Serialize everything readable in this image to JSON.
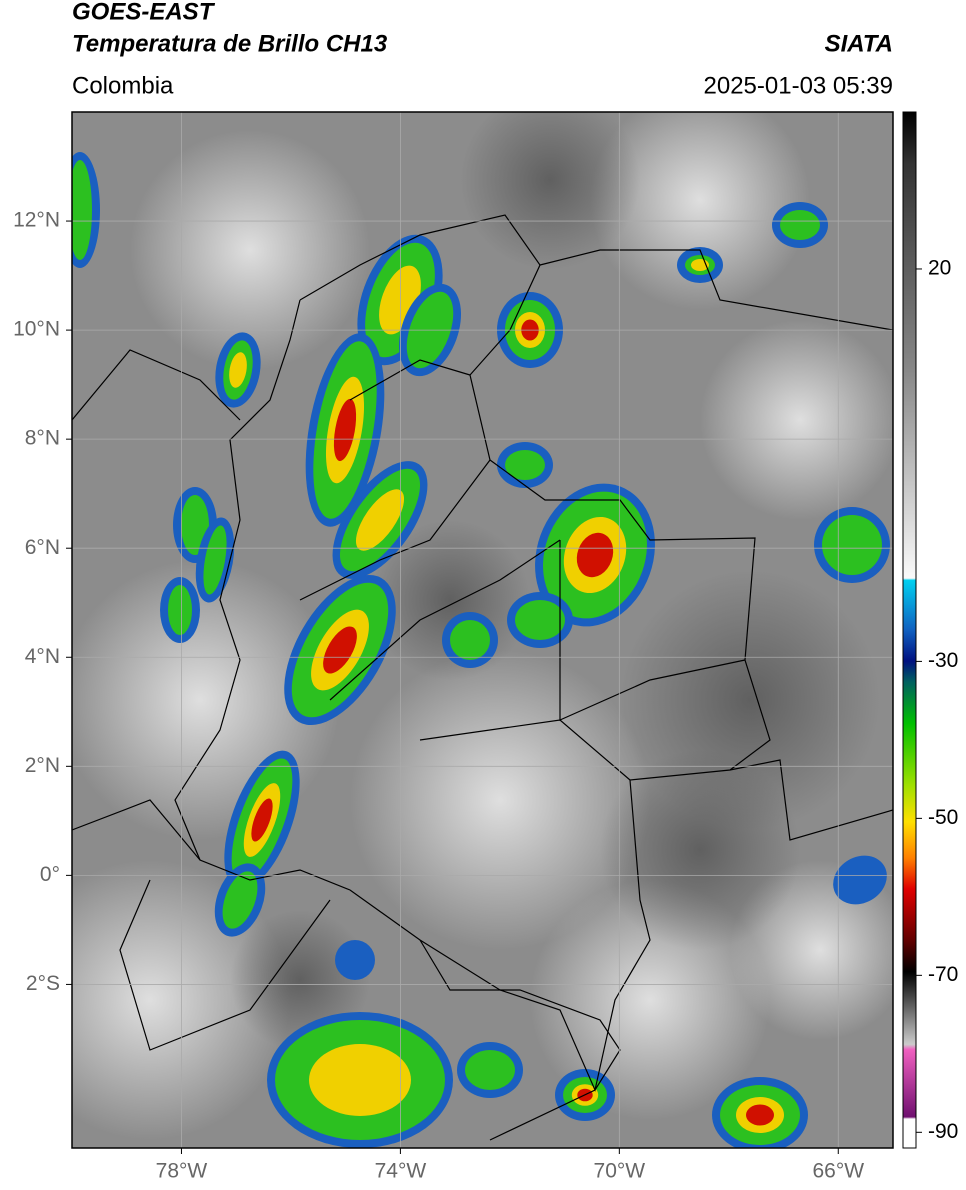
{
  "header": {
    "title": "GOES-EAST",
    "subtitle": "Temperatura de Brillo CH13",
    "source": "SIATA",
    "region": "Colombia",
    "datetime": "2025-01-03 05:39"
  },
  "map": {
    "xlim": [
      -80,
      -65
    ],
    "ylim": [
      -5,
      14
    ],
    "grid": true,
    "xticks": [
      {
        "value": -78,
        "label": "78°W"
      },
      {
        "value": -74,
        "label": "74°W"
      },
      {
        "value": -70,
        "label": "70°W"
      },
      {
        "value": -66,
        "label": "66°W"
      }
    ],
    "yticks": [
      {
        "value": 12,
        "label": "12°N"
      },
      {
        "value": 10,
        "label": "10°N"
      },
      {
        "value": 8,
        "label": "8°N"
      },
      {
        "value": 6,
        "label": "6°N"
      },
      {
        "value": 4,
        "label": "4°N"
      },
      {
        "value": 2,
        "label": "2°N"
      },
      {
        "value": 0,
        "label": "0°"
      },
      {
        "value": -2,
        "label": "2°S"
      }
    ]
  },
  "colorbar": {
    "lim": [
      -92,
      40
    ],
    "ticks": [
      20,
      -30,
      -50,
      -70,
      -90
    ]
  }
}
